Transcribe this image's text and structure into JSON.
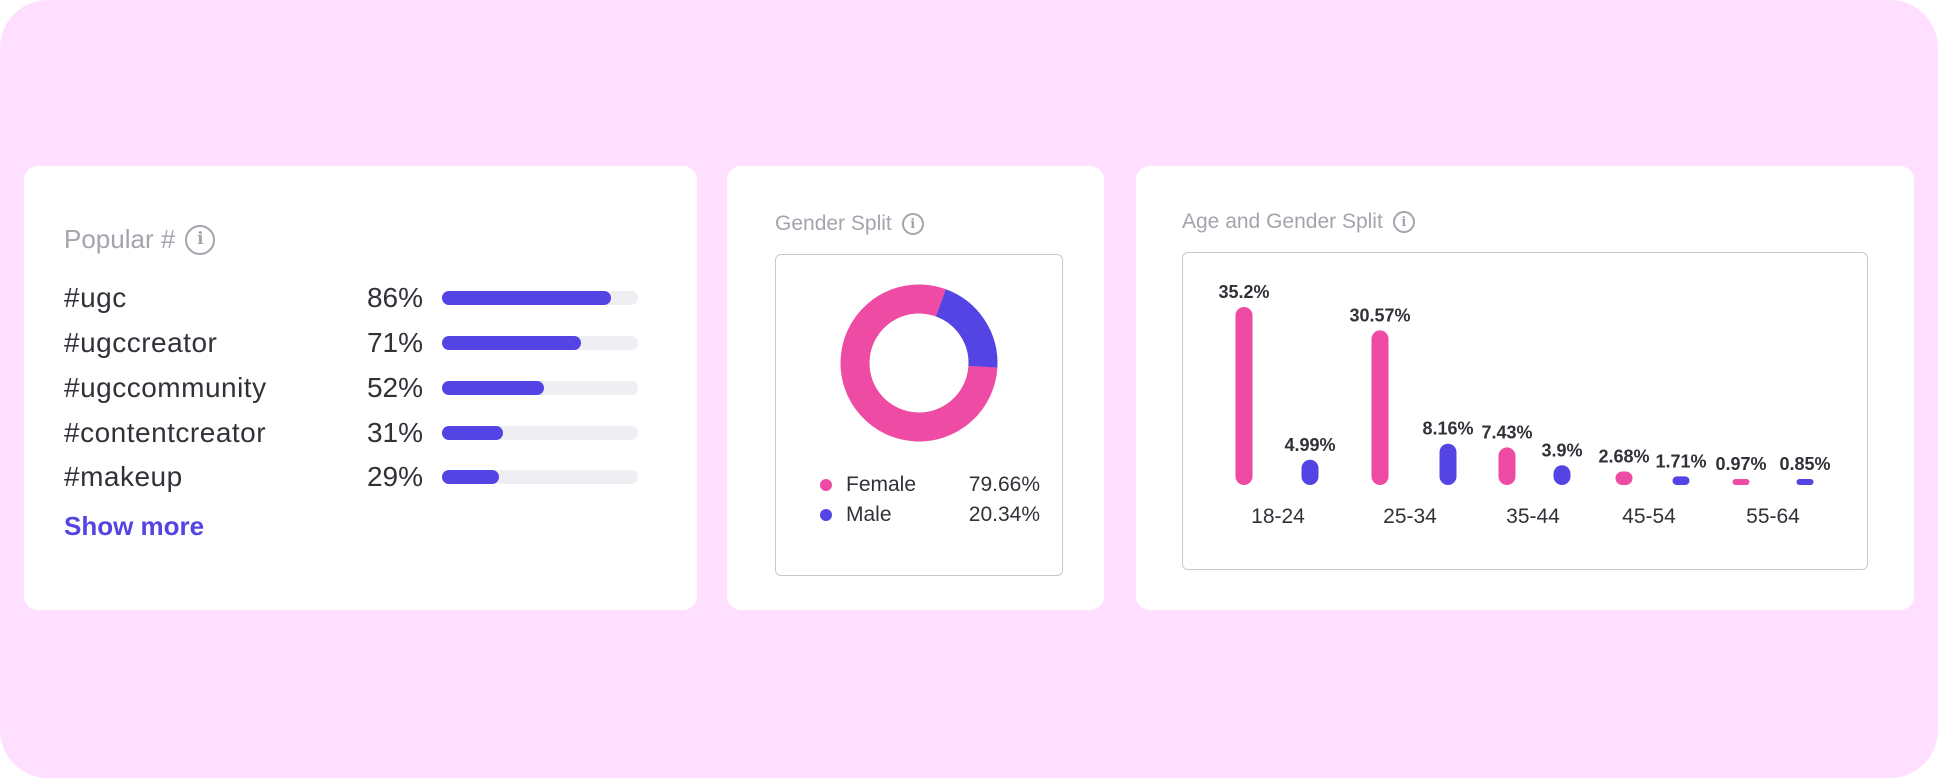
{
  "colors": {
    "background": "#ffdfff",
    "card": "#ffffff",
    "female": "#ee4ba5",
    "male": "#5444e3",
    "title": "#a7a3ad",
    "text": "#333038"
  },
  "popular": {
    "title": "Popular #",
    "info_icon": "info-icon",
    "items": [
      {
        "tag": "#ugc",
        "percent_label": "86%",
        "value": 86
      },
      {
        "tag": "#ugccreator",
        "percent_label": "71%",
        "value": 71
      },
      {
        "tag": "#ugccommunity",
        "percent_label": "52%",
        "value": 52
      },
      {
        "tag": "#contentcreator",
        "percent_label": "31%",
        "value": 31
      },
      {
        "tag": "#makeup",
        "percent_label": "29%",
        "value": 29
      }
    ],
    "show_more_label": "Show more"
  },
  "gender": {
    "title": "Gender Split",
    "info_icon": "info-icon",
    "legend": [
      {
        "label": "Female",
        "value_label": "79.66%",
        "color": "#ee4ba5"
      },
      {
        "label": "Male",
        "value_label": "20.34%",
        "color": "#5444e3"
      }
    ]
  },
  "age": {
    "title": "Age and Gender Split",
    "info_icon": "info-icon"
  },
  "chart_data": [
    {
      "type": "pie",
      "title": "Gender Split",
      "categories": [
        "Female",
        "Male"
      ],
      "values": [
        79.66,
        20.34
      ],
      "donut": true
    },
    {
      "type": "bar",
      "title": "Age and Gender Split",
      "categories": [
        "18-24",
        "25-34",
        "35-44",
        "45-54",
        "55-64"
      ],
      "series": [
        {
          "name": "Female",
          "values": [
            35.2,
            30.57,
            7.43,
            2.68,
            0.97
          ],
          "labels": [
            "35.2%",
            "30.57%",
            "7.43%",
            "2.68%",
            "0.97%"
          ]
        },
        {
          "name": "Male",
          "values": [
            4.99,
            8.16,
            3.9,
            1.71,
            0.85
          ],
          "labels": [
            "4.99%",
            "8.16%",
            "3.9%",
            "1.71%",
            "0.85%"
          ]
        }
      ],
      "ylim": [
        0,
        35.2
      ]
    }
  ]
}
